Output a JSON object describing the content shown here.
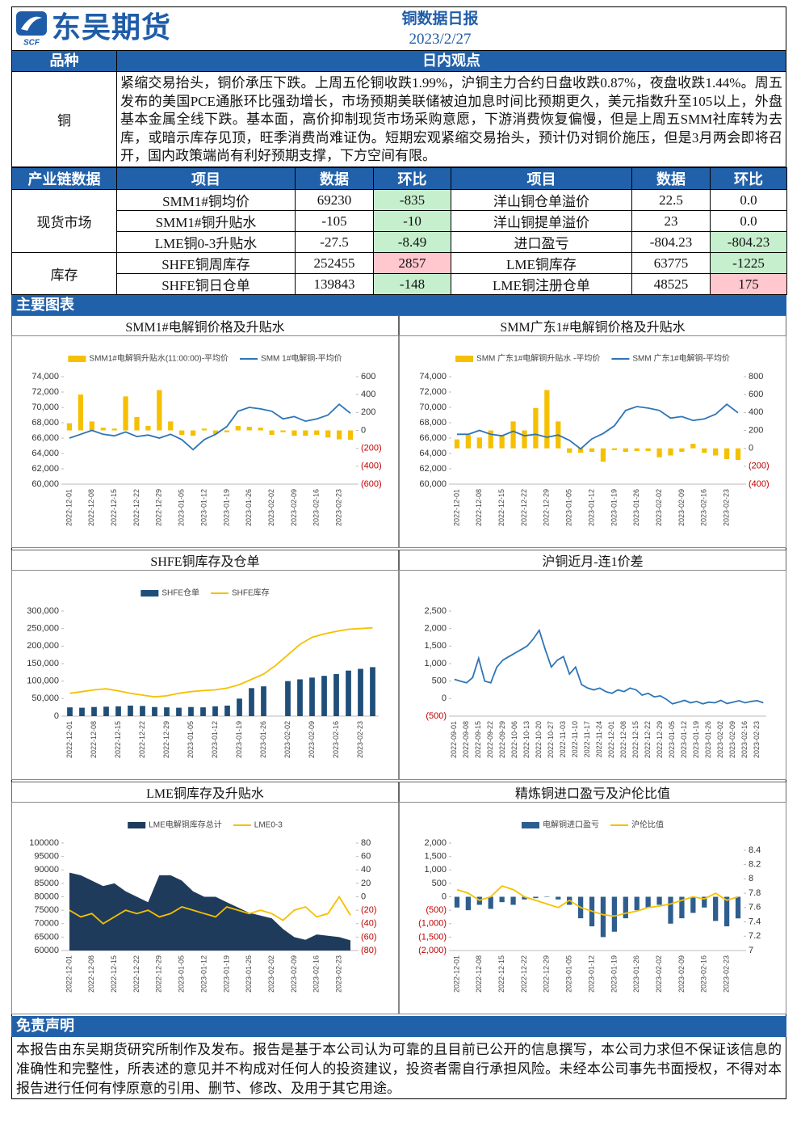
{
  "header": {
    "logo_text": "东吴期货",
    "logo_sub": "SCF",
    "title": "铜数据日报",
    "date": "2023/2/27"
  },
  "view": {
    "label_col": "品种",
    "heading": "日内观点",
    "commodity": "铜",
    "text": "紧缩交易抬头，铜价承压下跌。上周五伦铜收跌1.99%，沪铜主力合约日盘收跌0.87%，夜盘收跌1.44%。周五发布的美国PCE通胀环比强劲增长，市场预期美联储被迫加息时间比预期更久，美元指数升至105以上，外盘基本金属全线下跌。基本面，高价抑制现货市场采购意愿，下游消费恢复偏慢，但是上周五SMM社库转为去库，或暗示库存见顶，旺季消费尚难证伪。短期宏观紧缩交易抬头，预计仍对铜价施压，但是3月两会即将召开，国内政策端尚有利好预期支撑，下方空间有限。"
  },
  "table": {
    "headers": [
      "产业链数据",
      "项目",
      "数据",
      "环比",
      "项目",
      "数据",
      "环比"
    ],
    "groups": [
      {
        "name": "现货市场",
        "rows": [
          {
            "cells": [
              "SMM1#铜均价",
              "69230",
              "-835",
              "洋山铜仓单溢价",
              "22.5",
              "0.0"
            ],
            "colors": [
              "#c6efce",
              "#ffffff"
            ]
          },
          {
            "cells": [
              "SMM1#铜升贴水",
              "-105",
              "-10",
              "洋山铜提单溢价",
              "23",
              "0.0"
            ],
            "colors": [
              "#c6efce",
              "#ffffff"
            ]
          },
          {
            "cells": [
              "LME铜0-3升贴水",
              "-27.5",
              "-8.49",
              "进口盈亏",
              "-804.23",
              "-804.23"
            ],
            "colors": [
              "#c6efce",
              "#c6efce"
            ]
          }
        ]
      },
      {
        "name": "库存",
        "rows": [
          {
            "cells": [
              "SHFE铜周库存",
              "252455",
              "2857",
              "LME铜库存",
              "63775",
              "-1225"
            ],
            "colors": [
              "#ffc7ce",
              "#c6efce"
            ]
          },
          {
            "cells": [
              "SHFE铜日仓单",
              "139843",
              "-148",
              "LME铜注册仓单",
              "48525",
              "175"
            ],
            "colors": [
              "#c6efce",
              "#ffc7ce"
            ]
          }
        ]
      }
    ]
  },
  "charts_heading": "主要图表",
  "charts": [
    {
      "type": "combo",
      "title": "SMM1#电解铜价格及升贴水",
      "negative_color": "#c00000",
      "categories": [
        "2022-12-01",
        null,
        "2022-12-08",
        null,
        "2022-12-15",
        null,
        "2022-12-22",
        null,
        "2022-12-29",
        null,
        "2023-01-05",
        null,
        "2023-01-12",
        null,
        "2023-01-19",
        null,
        "2023-01-26",
        null,
        "2023-02-02",
        null,
        "2023-02-09",
        null,
        "2023-02-16",
        null,
        "2023-02-23",
        null
      ],
      "ylim": [
        60000,
        74000
      ],
      "yticks": [
        {
          "value": 60000,
          "label": "60,000"
        },
        {
          "value": 62000,
          "label": "62,000"
        },
        {
          "value": 64000,
          "label": "64,000"
        },
        {
          "value": 66000,
          "label": "66,000"
        },
        {
          "value": 68000,
          "label": "68,000"
        },
        {
          "value": 70000,
          "label": "70,000"
        },
        {
          "value": 72000,
          "label": "72,000"
        },
        {
          "value": 74000,
          "label": "74,000"
        }
      ],
      "y2lim": [
        -600,
        600
      ],
      "y2ticks": [
        {
          "value": -600,
          "label": "(600)"
        },
        {
          "value": -400,
          "label": "(400)"
        },
        {
          "value": -200,
          "label": "(200)"
        },
        0,
        200,
        400,
        600
      ],
      "series": [
        {
          "name": "SMM1#电解铜升贴水(11:00:00)-平均价",
          "kind": "bar",
          "axis": "y2",
          "color": "#f5c000",
          "values": [
            80,
            400,
            100,
            30,
            20,
            380,
            150,
            50,
            450,
            100,
            -50,
            -60,
            20,
            -40,
            -20,
            50,
            40,
            30,
            -50,
            -20,
            -60,
            -60,
            -50,
            -80,
            -100,
            -105
          ]
        },
        {
          "name": "SMM 1#电解铜-平均价",
          "kind": "line",
          "color": "#2e75b6",
          "values": [
            66000,
            66500,
            67000,
            66500,
            66300,
            66800,
            66200,
            66400,
            66000,
            66500,
            65800,
            64500,
            65800,
            66500,
            67500,
            69500,
            70000,
            69800,
            69500,
            68500,
            68800,
            68200,
            68500,
            69000,
            70400,
            69230
          ]
        }
      ]
    },
    {
      "type": "combo",
      "title": "SMM广东1#电解铜价格及升贴水",
      "negative_color": "#c00000",
      "categories": [
        "2022-12-01",
        null,
        "2022-12-08",
        null,
        "2022-12-15",
        null,
        "2022-12-22",
        null,
        "2022-12-29",
        null,
        "2023-01-05",
        null,
        "2023-01-12",
        null,
        "2023-01-19",
        null,
        "2023-01-26",
        null,
        "2023-02-02",
        null,
        "2023-02-09",
        null,
        "2023-02-16",
        null,
        "2023-02-23",
        null
      ],
      "ylim": [
        60000,
        74000
      ],
      "yticks": [
        {
          "value": 60000,
          "label": "60,000"
        },
        {
          "value": 62000,
          "label": "62,000"
        },
        {
          "value": 64000,
          "label": "64,000"
        },
        {
          "value": 66000,
          "label": "66,000"
        },
        {
          "value": 68000,
          "label": "68,000"
        },
        {
          "value": 70000,
          "label": "70,000"
        },
        {
          "value": 72000,
          "label": "72,000"
        },
        {
          "value": 74000,
          "label": "74,000"
        }
      ],
      "y2lim": [
        -400,
        800
      ],
      "y2ticks": [
        {
          "value": -400,
          "label": "(400)"
        },
        {
          "value": -200,
          "label": "(200)"
        },
        0,
        200,
        400,
        600,
        800
      ],
      "series": [
        {
          "name": "SMM 广东1#电解铜升贴水 -平均价",
          "kind": "bar",
          "axis": "y2",
          "color": "#f5c000",
          "values": [
            100,
            150,
            120,
            200,
            150,
            300,
            200,
            450,
            650,
            300,
            -50,
            -50,
            -40,
            -150,
            -20,
            -40,
            -30,
            -30,
            -100,
            -80,
            -40,
            50,
            -50,
            -80,
            -120,
            -130
          ]
        },
        {
          "name": "SMM 广东1#电解铜-平均价",
          "kind": "line",
          "color": "#2e75b6",
          "values": [
            66500,
            66500,
            67000,
            66500,
            66300,
            66900,
            66300,
            66500,
            66100,
            66400,
            65700,
            64600,
            65900,
            66600,
            67600,
            69600,
            70100,
            69900,
            69600,
            68600,
            68800,
            68300,
            68500,
            69100,
            70400,
            69300
          ]
        }
      ]
    },
    {
      "type": "combo",
      "title": "SHFE铜库存及仓单",
      "categories": [
        "2022-12-01",
        null,
        "2022-12-08",
        null,
        "2022-12-15",
        null,
        "2022-12-22",
        null,
        "2022-12-29",
        null,
        "2023-01-05",
        null,
        "2023-01-12",
        null,
        "2023-01-19",
        null,
        "2023-01-26",
        null,
        "2023-02-02",
        null,
        "2023-02-09",
        null,
        "2023-02-16",
        null,
        "2023-02-23",
        null
      ],
      "ylim": [
        0,
        300000
      ],
      "yticks": [
        0,
        {
          "value": 50000,
          "label": "50,000"
        },
        {
          "value": 100000,
          "label": "100,000"
        },
        {
          "value": 150000,
          "label": "150,000"
        },
        {
          "value": 200000,
          "label": "200,000"
        },
        {
          "value": 250000,
          "label": "250,000"
        },
        {
          "value": 300000,
          "label": "300,000"
        }
      ],
      "series": [
        {
          "name": "SHFE仓单",
          "kind": "bar",
          "color": "#1f4e79",
          "values": [
            25000,
            24000,
            26000,
            27000,
            28000,
            30000,
            29000,
            26000,
            25000,
            24000,
            26000,
            25000,
            28000,
            30000,
            50000,
            80000,
            85000,
            null,
            100000,
            105000,
            110000,
            115000,
            120000,
            130000,
            135000,
            139843
          ]
        },
        {
          "name": "SHFE库存",
          "kind": "line",
          "color": "#f5c000",
          "values": [
            65000,
            70000,
            75000,
            78000,
            72000,
            65000,
            60000,
            55000,
            58000,
            65000,
            70000,
            73000,
            75000,
            80000,
            90000,
            105000,
            120000,
            145000,
            175000,
            205000,
            225000,
            235000,
            242000,
            248000,
            250000,
            252455
          ]
        }
      ]
    },
    {
      "type": "line",
      "title": "沪铜近月-连1价差",
      "negative_color": "#c00000",
      "categories": [
        "2022-09-01",
        null,
        "2022-09-08",
        null,
        "2022-09-15",
        null,
        "2022-09-22",
        null,
        "2022-09-29",
        null,
        "2022-10-06",
        null,
        "2022-10-13",
        null,
        "2022-10-20",
        null,
        "2022-10-27",
        null,
        "2022-11-03",
        null,
        "2022-11-10",
        null,
        "2022-11-17",
        null,
        "2022-11-24",
        null,
        "2022-12-01",
        null,
        "2022-12-08",
        null,
        "2022-12-15",
        null,
        "2022-12-22",
        null,
        "2022-12-29",
        null,
        "2023-01-05",
        null,
        "2023-01-12",
        null,
        "2023-01-19",
        null,
        "2023-01-26",
        null,
        "2023-02-02",
        null,
        "2023-02-09",
        null,
        "2023-02-16",
        null,
        "2023-02-23",
        null
      ],
      "ylim": [
        -500,
        2500
      ],
      "yticks": [
        {
          "value": -500,
          "label": "(500)"
        },
        0,
        500,
        {
          "value": 1000,
          "label": "1,000"
        },
        {
          "value": 1500,
          "label": "1,500"
        },
        {
          "value": 2000,
          "label": "2,000"
        },
        {
          "value": 2500,
          "label": "2,500"
        }
      ],
      "series": [
        {
          "kind": "line",
          "color": "#2e75b6",
          "values": [
            550,
            500,
            450,
            600,
            1150,
            500,
            450,
            900,
            1100,
            1200,
            1300,
            1400,
            1500,
            1700,
            1950,
            1400,
            900,
            1100,
            1200,
            700,
            900,
            400,
            300,
            250,
            300,
            200,
            150,
            250,
            200,
            300,
            250,
            100,
            150,
            50,
            80,
            -20,
            -150,
            -100,
            -50,
            -120,
            -80,
            -150,
            -100,
            -120,
            -50,
            -140,
            -100,
            -60,
            -120,
            -80,
            -60,
            -120
          ]
        }
      ]
    },
    {
      "type": "combo",
      "title": "LME铜库存及升贴水",
      "negative_color": "#c00000",
      "categories": [
        "2022-12-01",
        null,
        "2022-12-08",
        null,
        "2022-12-15",
        null,
        "2022-12-22",
        null,
        "2022-12-29",
        null,
        "2023-01-05",
        null,
        "2023-01-12",
        null,
        "2023-01-19",
        null,
        "2023-01-26",
        null,
        "2023-02-02",
        null,
        "2023-02-09",
        null,
        "2023-02-16",
        null,
        "2023-02-23",
        null
      ],
      "ylim": [
        60000,
        100000
      ],
      "yticks": [
        60000,
        65000,
        70000,
        75000,
        80000,
        85000,
        90000,
        95000,
        100000
      ],
      "y2lim": [
        -80,
        80
      ],
      "y2ticks": [
        {
          "value": -80,
          "label": "(80)"
        },
        {
          "value": -60,
          "label": "(60)"
        },
        {
          "value": -40,
          "label": "(40)"
        },
        {
          "value": -20,
          "label": "(20)"
        },
        0,
        20,
        40,
        60,
        80
      ],
      "series": [
        {
          "name": "LME电解铜库存总计",
          "kind": "area",
          "color": "#1f3b5c",
          "values": [
            89000,
            88000,
            86000,
            84000,
            85000,
            82000,
            80000,
            78000,
            88000,
            88000,
            86000,
            82000,
            80000,
            80000,
            78000,
            76000,
            74000,
            73000,
            72000,
            68000,
            65000,
            64000,
            66000,
            65500,
            65000,
            63775
          ]
        },
        {
          "name": "LME0-3",
          "kind": "line",
          "axis": "y2",
          "color": "#f5c000",
          "values": [
            -20,
            -30,
            -25,
            -40,
            -30,
            -20,
            -25,
            -20,
            -30,
            -25,
            -15,
            -20,
            -25,
            -30,
            -15,
            -20,
            -25,
            -20,
            -25,
            -35,
            -20,
            -15,
            -30,
            -25,
            0,
            -27.5
          ]
        }
      ]
    },
    {
      "type": "combo",
      "title": "精炼铜进口盈亏及沪伦比值",
      "negative_color": "#c00000",
      "categories": [
        "2022-12-01",
        null,
        "2022-12-08",
        null,
        "2022-12-15",
        null,
        "2022-12-22",
        null,
        "2022-12-29",
        null,
        "2023-01-05",
        null,
        "2023-01-12",
        null,
        "2023-01-19",
        null,
        "2023-01-26",
        null,
        "2023-02-02",
        null,
        "2023-02-09",
        null,
        "2023-02-16",
        null,
        "2023-02-23",
        null
      ],
      "ylim": [
        -2000,
        2000
      ],
      "yticks": [
        {
          "value": -2000,
          "label": "(2,000)"
        },
        {
          "value": -1500,
          "label": "(1,500)"
        },
        {
          "value": -1000,
          "label": "(1,000)"
        },
        {
          "value": -500,
          "label": "(500)"
        },
        0,
        500,
        {
          "value": 1000,
          "label": "1,000"
        },
        {
          "value": 1500,
          "label": "1,500"
        },
        {
          "value": 2000,
          "label": "2,000"
        }
      ],
      "y2lim": [
        7,
        8.5
      ],
      "y2ticks": [
        7,
        7.2,
        7.4,
        7.6,
        7.8,
        8,
        8.2,
        8.4
      ],
      "series": [
        {
          "name": "电解铜进口盈亏",
          "kind": "bar",
          "color": "#2e5e8e",
          "values": [
            -400,
            -500,
            -300,
            -450,
            -200,
            -300,
            -100,
            -50,
            0,
            -100,
            -300,
            -800,
            -1100,
            -1500,
            -1300,
            -800,
            -500,
            -400,
            -300,
            -1000,
            -800,
            -600,
            -400,
            -900,
            -1100,
            -804.23
          ]
        },
        {
          "name": "沪伦比值",
          "kind": "line",
          "axis": "y2",
          "color": "#f5c000",
          "values": [
            7.85,
            7.8,
            7.7,
            7.75,
            7.9,
            7.85,
            7.75,
            7.7,
            7.65,
            7.6,
            7.7,
            7.6,
            7.55,
            7.5,
            7.48,
            7.52,
            7.55,
            7.6,
            7.62,
            7.65,
            7.7,
            7.75,
            7.72,
            7.8,
            7.7,
            7.75
          ]
        }
      ]
    }
  ],
  "disclaimer": {
    "heading": "免责声明",
    "text": "本报告由东吴期货研究所制作及发布。报告是基于本公司认为可靠的且目前已公开的信息撰写，本公司力求但不保证该信息的准确性和完整性，所表述的意见并不构成对任何人的投资建议，投资者需自行承担风险。未经本公司事先书面授权，不得对本报告进行任何有悖原意的引用、删节、修改、及用于其它用途。"
  }
}
